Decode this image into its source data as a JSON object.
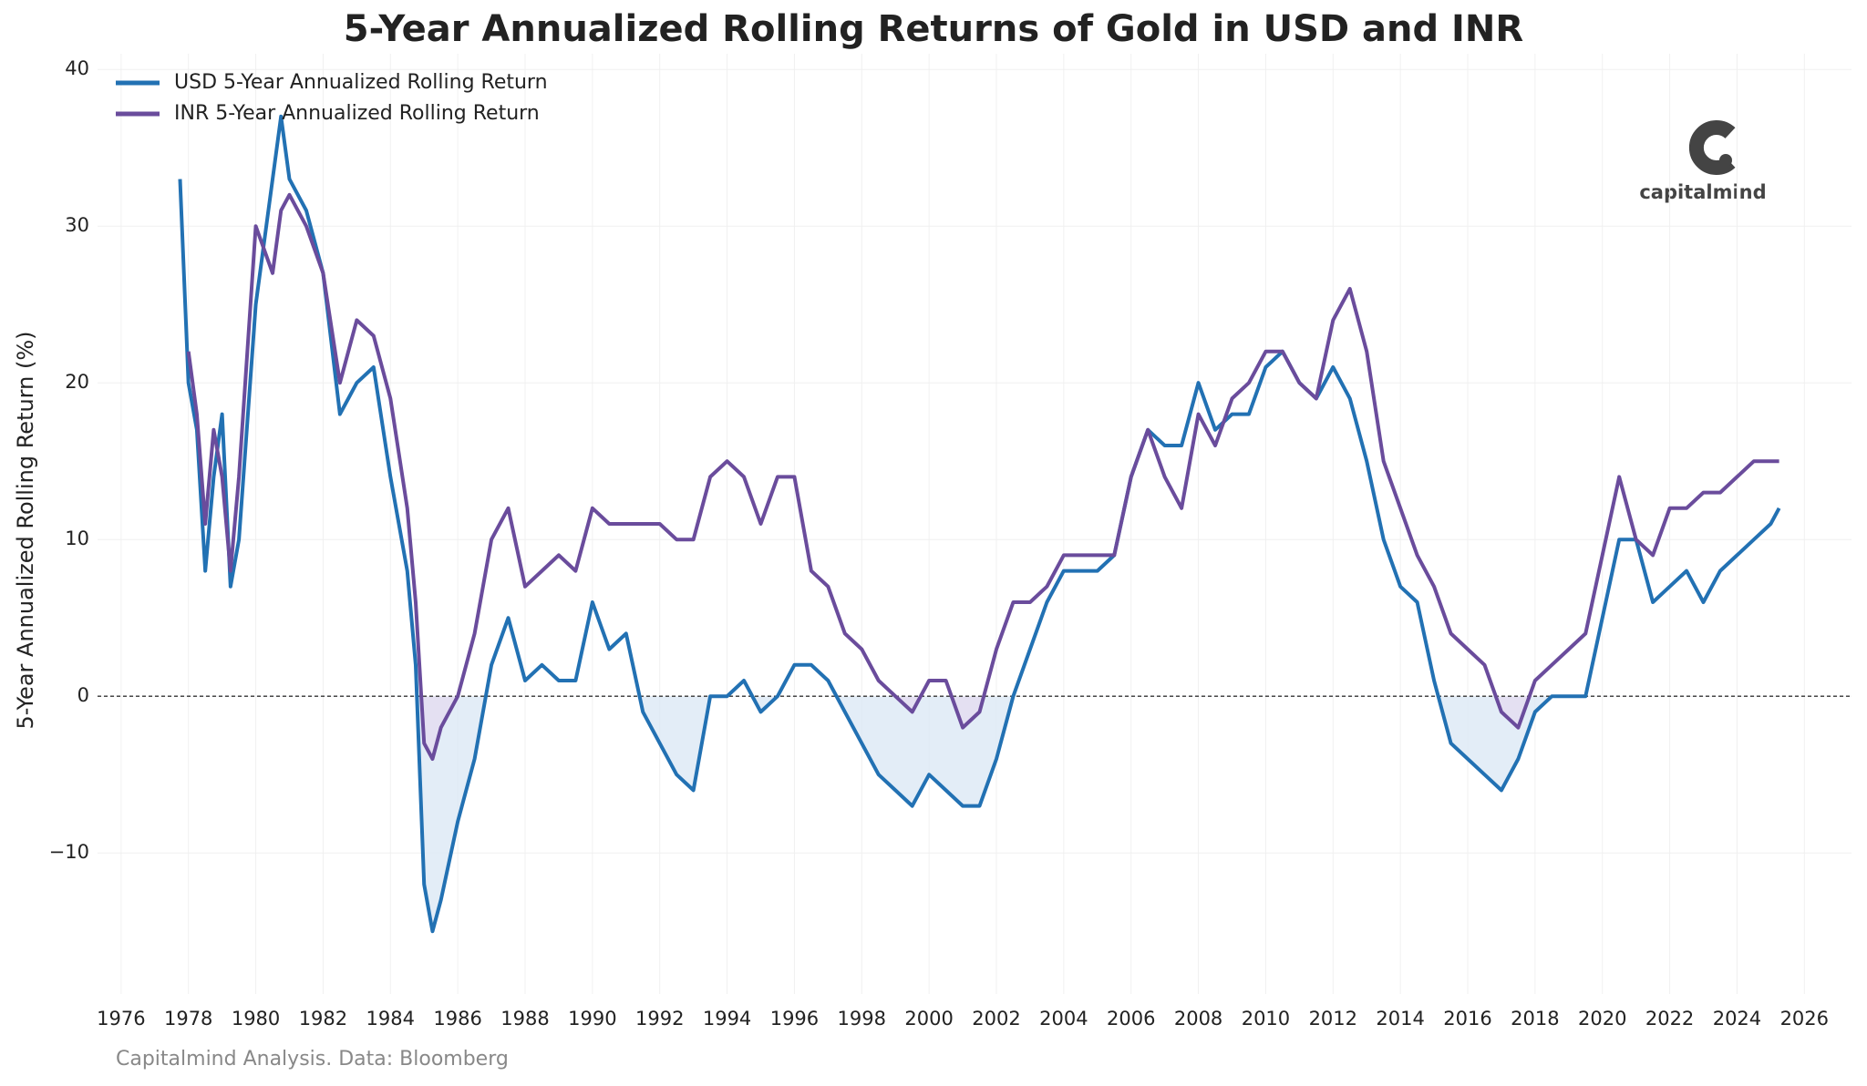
{
  "chart_data": {
    "type": "line",
    "title": "5-Year Annualized Rolling Returns of Gold in USD and INR",
    "y_label": "5-Year Annualized Rolling Return (%)",
    "source": "Capitalmind Analysis. Data: Bloomberg",
    "logo": "capitalmind",
    "x": [
      1977.75,
      1978.0,
      1978.25,
      1978.5,
      1978.75,
      1979.0,
      1979.25,
      1979.5,
      1980.0,
      1980.5,
      1980.75,
      1981.0,
      1981.5,
      1982.0,
      1982.5,
      1983.0,
      1983.5,
      1984.0,
      1984.5,
      1984.75,
      1985.0,
      1985.25,
      1985.5,
      1986.0,
      1986.5,
      1987.0,
      1987.5,
      1988.0,
      1988.5,
      1989.0,
      1989.5,
      1990.0,
      1990.5,
      1991.0,
      1991.5,
      1992.0,
      1992.5,
      1993.0,
      1993.5,
      1994.0,
      1994.5,
      1995.0,
      1995.5,
      1996.0,
      1996.5,
      1997.0,
      1997.5,
      1998.0,
      1998.5,
      1999.0,
      1999.5,
      2000.0,
      2000.5,
      2001.0,
      2001.5,
      2002.0,
      2002.5,
      2003.0,
      2003.5,
      2004.0,
      2004.5,
      2005.0,
      2005.5,
      2006.0,
      2006.5,
      2007.0,
      2007.5,
      2008.0,
      2008.5,
      2009.0,
      2009.5,
      2010.0,
      2010.5,
      2011.0,
      2011.5,
      2012.0,
      2012.5,
      2013.0,
      2013.5,
      2014.0,
      2014.5,
      2015.0,
      2015.5,
      2016.0,
      2016.5,
      2017.0,
      2017.5,
      2018.0,
      2018.5,
      2019.0,
      2019.5,
      2020.0,
      2020.5,
      2021.0,
      2021.5,
      2022.0,
      2022.5,
      2023.0,
      2023.5,
      2024.0,
      2024.5,
      2025.0,
      2025.25
    ],
    "series": [
      {
        "name": "USD 5-Year Annualized Rolling Return",
        "color": "#2271b3",
        "fill": "#dce8f5",
        "values": [
          33,
          20,
          17,
          8,
          14,
          18,
          7,
          10,
          25,
          33,
          37,
          33,
          31,
          27,
          18,
          20,
          21,
          14,
          8,
          2,
          -12,
          -15,
          -13,
          -8,
          -4,
          2,
          5,
          1,
          2,
          1,
          1,
          6,
          3,
          4,
          -1,
          -3,
          -5,
          -6,
          0,
          0,
          1,
          -1,
          0,
          2,
          2,
          1,
          -1,
          -3,
          -5,
          -6,
          -7,
          -5,
          -6,
          -7,
          -7,
          -4,
          0,
          3,
          6,
          8,
          8,
          8,
          9,
          14,
          17,
          16,
          16,
          20,
          17,
          18,
          18,
          21,
          22,
          20,
          19,
          21,
          19,
          15,
          10,
          7,
          6,
          1,
          -3,
          -4,
          -5,
          -6,
          -4,
          -1,
          0,
          0,
          0,
          5,
          10,
          10,
          6,
          7,
          8,
          6,
          8,
          9,
          10,
          11,
          12
        ]
      },
      {
        "name": "INR 5-Year Annualized Rolling Return",
        "color": "#6a4c9c",
        "fill": "#e3dcf0",
        "values": [
          null,
          22,
          18,
          11,
          17,
          14,
          8,
          14,
          30,
          27,
          31,
          32,
          30,
          27,
          20,
          24,
          23,
          19,
          12,
          6,
          -3,
          -4,
          -2,
          0,
          4,
          10,
          12,
          7,
          8,
          9,
          8,
          12,
          11,
          11,
          11,
          11,
          10,
          10,
          14,
          15,
          14,
          11,
          14,
          14,
          8,
          7,
          4,
          3,
          1,
          0,
          -1,
          1,
          1,
          -2,
          -1,
          3,
          6,
          6,
          7,
          9,
          9,
          9,
          9,
          14,
          17,
          14,
          12,
          18,
          16,
          19,
          20,
          22,
          22,
          20,
          19,
          24,
          26,
          22,
          15,
          12,
          9,
          7,
          4,
          3,
          2,
          -1,
          -2,
          1,
          2,
          3,
          4,
          9,
          14,
          10,
          9,
          12,
          12,
          13,
          13,
          14,
          15,
          15,
          15
        ]
      }
    ],
    "xlim": [
      1975.3,
      2027.4
    ],
    "ylim": [
      -19,
      41
    ],
    "xticks": [
      1976,
      1978,
      1980,
      1982,
      1984,
      1986,
      1988,
      1990,
      1992,
      1994,
      1996,
      1998,
      2000,
      2002,
      2004,
      2006,
      2008,
      2010,
      2012,
      2014,
      2016,
      2018,
      2020,
      2022,
      2024,
      2026
    ],
    "yticks": [
      {
        "value": -10,
        "label": "−10"
      },
      0,
      10,
      20,
      30,
      40
    ],
    "grid": true,
    "zero_line": true,
    "legend": "upper left"
  }
}
